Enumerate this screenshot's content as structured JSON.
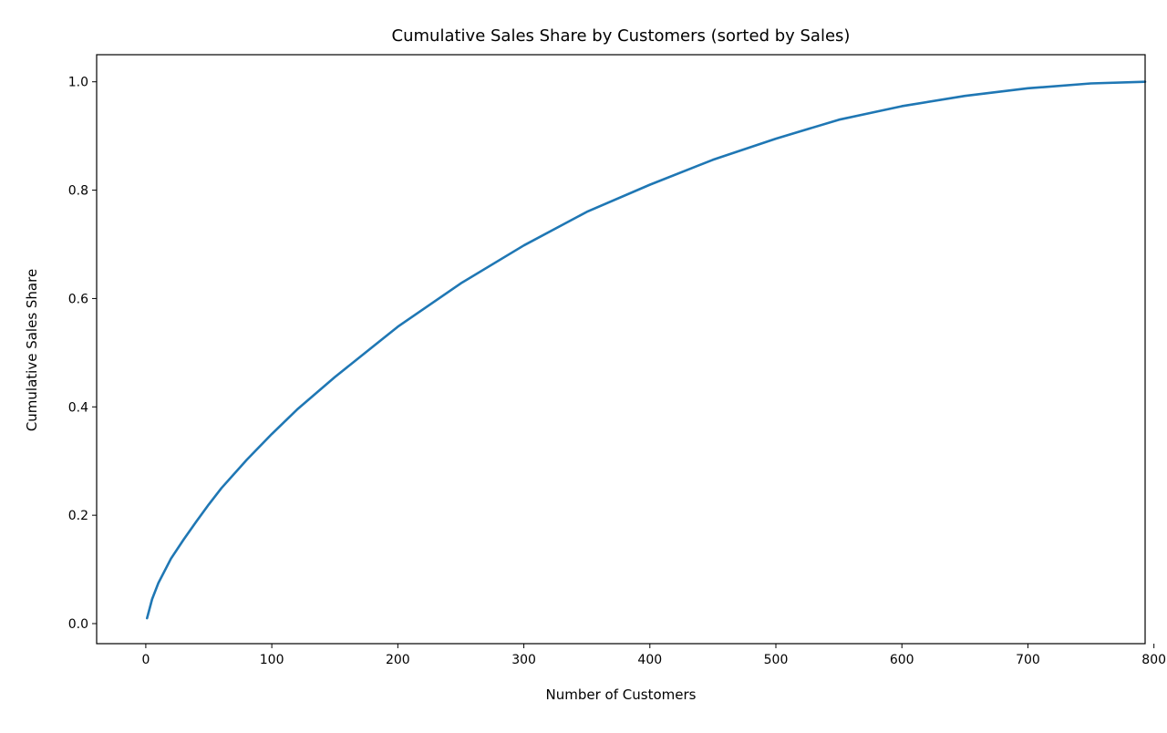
{
  "chart_data": {
    "type": "line",
    "title": "Cumulative Sales Share by Customers (sorted by Sales)",
    "xlabel": "Number of Customers",
    "ylabel": "Cumulative Sales Share",
    "xlim": [
      -39,
      793
    ],
    "ylim": [
      -0.037,
      1.05
    ],
    "x_ticks": [
      0,
      100,
      200,
      300,
      400,
      500,
      600,
      700,
      800
    ],
    "y_ticks": [
      0.0,
      0.2,
      0.4,
      0.6,
      0.8,
      1.0
    ],
    "x_tick_labels": [
      "0",
      "100",
      "200",
      "300",
      "400",
      "500",
      "600",
      "700",
      "800"
    ],
    "y_tick_labels": [
      "0.0",
      "0.2",
      "0.4",
      "0.6",
      "0.8",
      "1.0"
    ],
    "grid": false,
    "series": [
      {
        "color": "#1f77b4",
        "x": [
          1,
          5,
          10,
          20,
          30,
          40,
          50,
          60,
          80,
          100,
          120,
          150,
          200,
          250,
          300,
          350,
          400,
          450,
          500,
          550,
          600,
          650,
          700,
          750,
          793
        ],
        "y": [
          0.01,
          0.045,
          0.075,
          0.12,
          0.155,
          0.188,
          0.22,
          0.25,
          0.302,
          0.35,
          0.395,
          0.455,
          0.548,
          0.628,
          0.698,
          0.76,
          0.81,
          0.856,
          0.895,
          0.93,
          0.955,
          0.974,
          0.988,
          0.997,
          1.0
        ]
      }
    ]
  },
  "colors": {
    "line": "#1f77b4",
    "axes": "#000000",
    "background": "#ffffff"
  }
}
